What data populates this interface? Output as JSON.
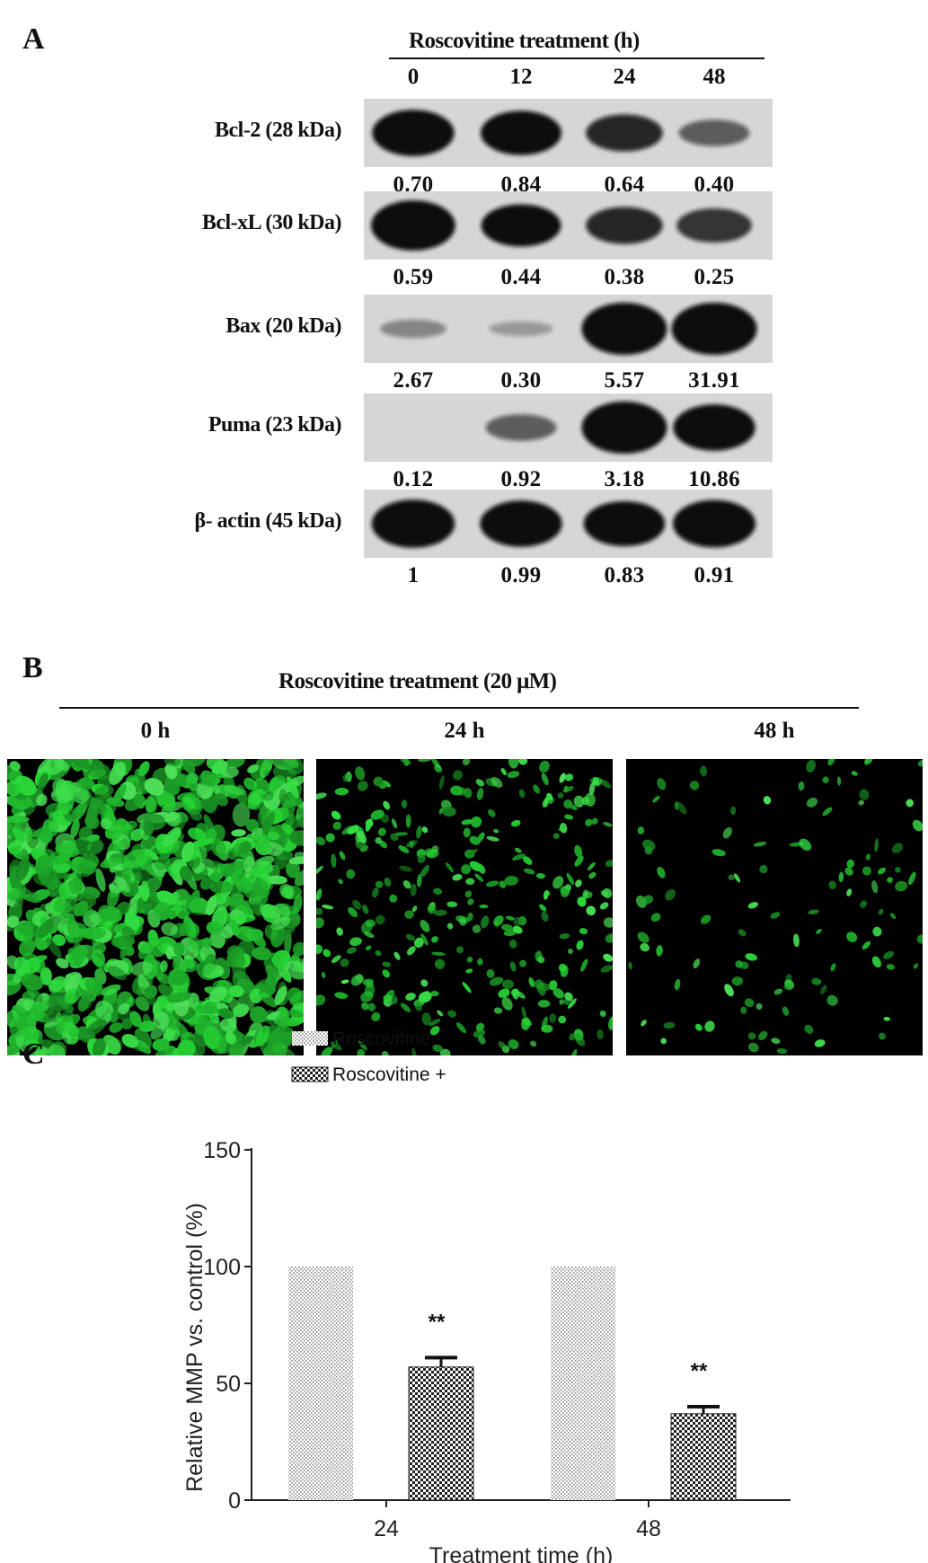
{
  "panel_a": {
    "letter": "A",
    "header": "Roscovitine treatment (h)",
    "lanes": [
      "0",
      "12",
      "24",
      "48"
    ],
    "blots": [
      {
        "label": "Bcl-2 (28 kDa)",
        "values": [
          "0.70",
          "0.84",
          "0.64",
          "0.40"
        ],
        "bands": [
          0.85,
          0.8,
          0.62,
          0.35
        ]
      },
      {
        "label": "Bcl-xL (30 kDa)",
        "values": [
          "0.59",
          "0.44",
          "0.38",
          "0.25"
        ],
        "bands": [
          0.95,
          0.75,
          0.62,
          0.55
        ]
      },
      {
        "label": "Bax (20 kDa)",
        "values": [
          "2.67",
          "0.30",
          "5.57",
          "31.91"
        ],
        "bands": [
          0.15,
          0.05,
          1.0,
          1.0
        ]
      },
      {
        "label": "Puma (23 kDa)",
        "values": [
          "0.12",
          "0.92",
          "3.18",
          "10.86"
        ],
        "bands": [
          0.0,
          0.35,
          1.0,
          0.85
        ]
      },
      {
        "label": "β- actin (45 kDa)",
        "values": [
          "1",
          "0.99",
          "0.83",
          "0.91"
        ],
        "bands": [
          0.9,
          0.85,
          0.82,
          0.88
        ]
      }
    ]
  },
  "panel_b": {
    "letter": "B",
    "header": "Roscovitine treatment (20 μM)",
    "times": [
      "0 h",
      "24 h",
      "48 h"
    ],
    "density": [
      0.95,
      0.35,
      0.12
    ],
    "fluor_color": "#2fd03a"
  },
  "panel_c": {
    "letter": "C",
    "chart_data": {
      "type": "bar",
      "categories": [
        "24",
        "48"
      ],
      "series": [
        {
          "name": "Roscovitine -",
          "values": [
            100,
            100
          ],
          "errors": [
            0,
            0
          ]
        },
        {
          "name": "Roscovitine +",
          "values": [
            57,
            37
          ],
          "errors": [
            4,
            3
          ]
        }
      ],
      "significance": [
        "**",
        "**"
      ],
      "xlabel": "Treatment time (h)",
      "ylabel": "Relative  MMP  vs. control (%)",
      "ylim": [
        0,
        150
      ],
      "yticks": [
        0,
        50,
        100,
        150
      ],
      "legend_position": "top-left",
      "grid": false
    }
  }
}
